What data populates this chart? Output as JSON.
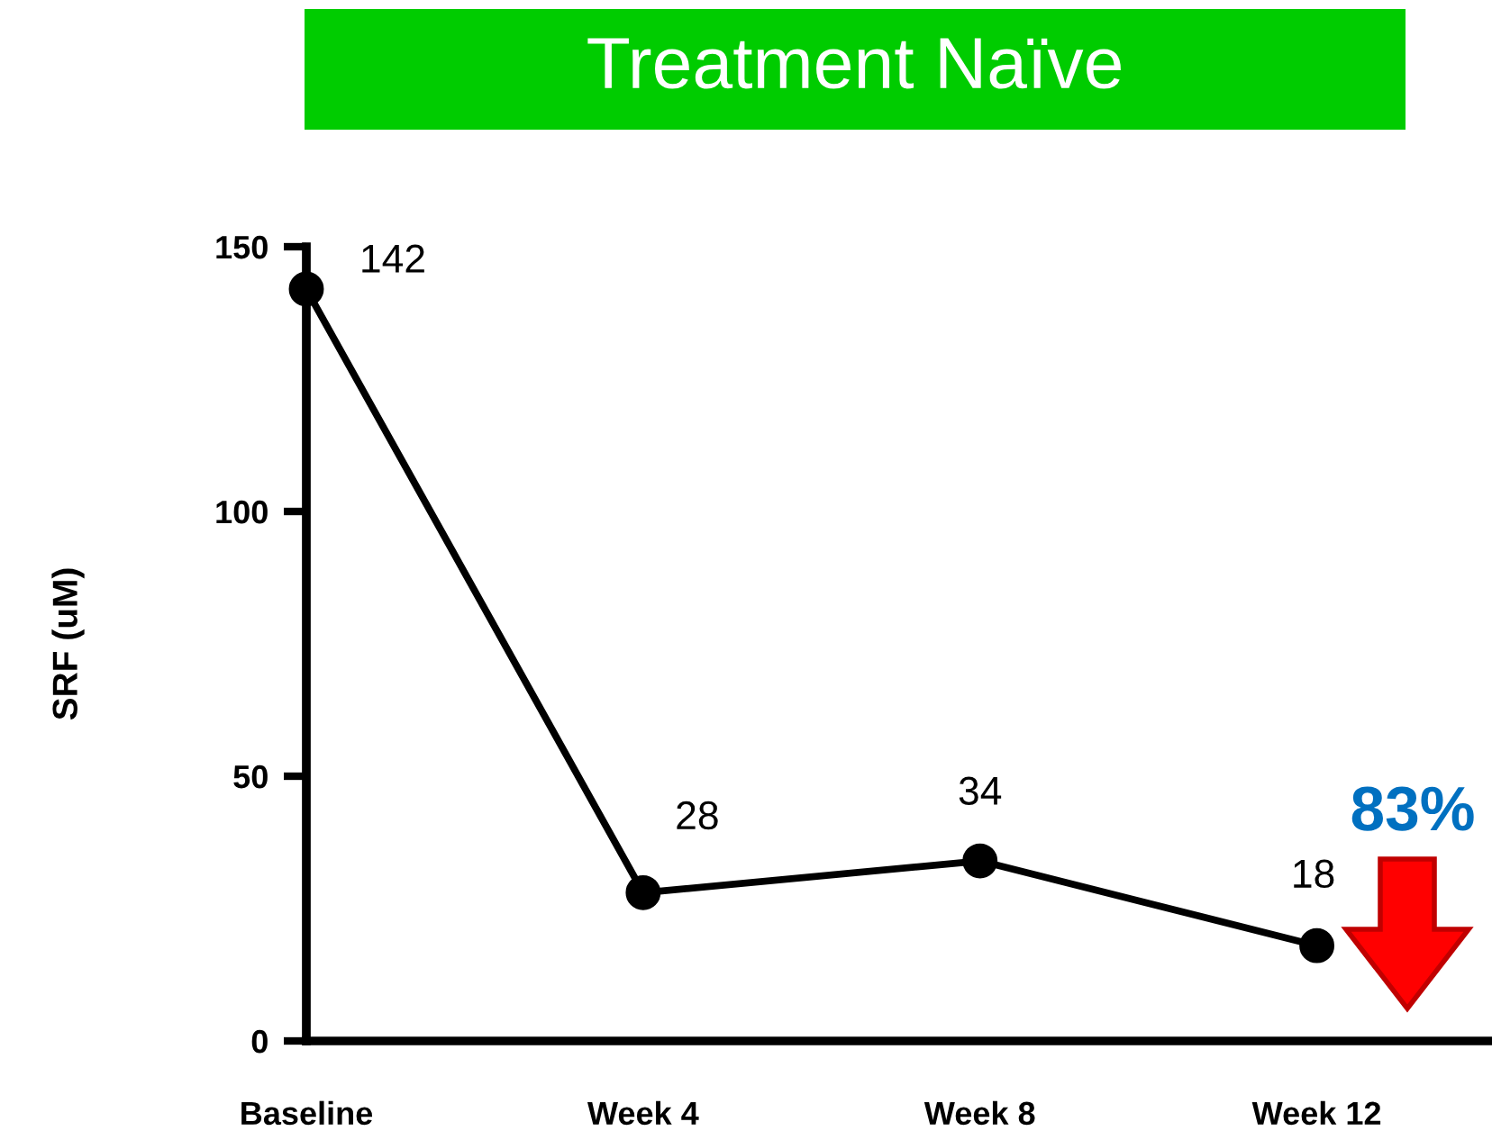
{
  "chart_data": {
    "type": "line",
    "title": "Treatment Naïve",
    "ylabel": "SRF (uM)",
    "categories": [
      "Baseline",
      "Week 4",
      "Week 8",
      "Week 12"
    ],
    "series": [
      {
        "color": "#000000",
        "values": [
          142,
          28,
          34,
          18
        ]
      }
    ],
    "ylim": [
      0,
      150
    ],
    "yticks": [
      0,
      50,
      100,
      150
    ],
    "data_labels": true,
    "marker": "circle",
    "line_style": "solid",
    "annotations": [
      "83%"
    ]
  }
}
